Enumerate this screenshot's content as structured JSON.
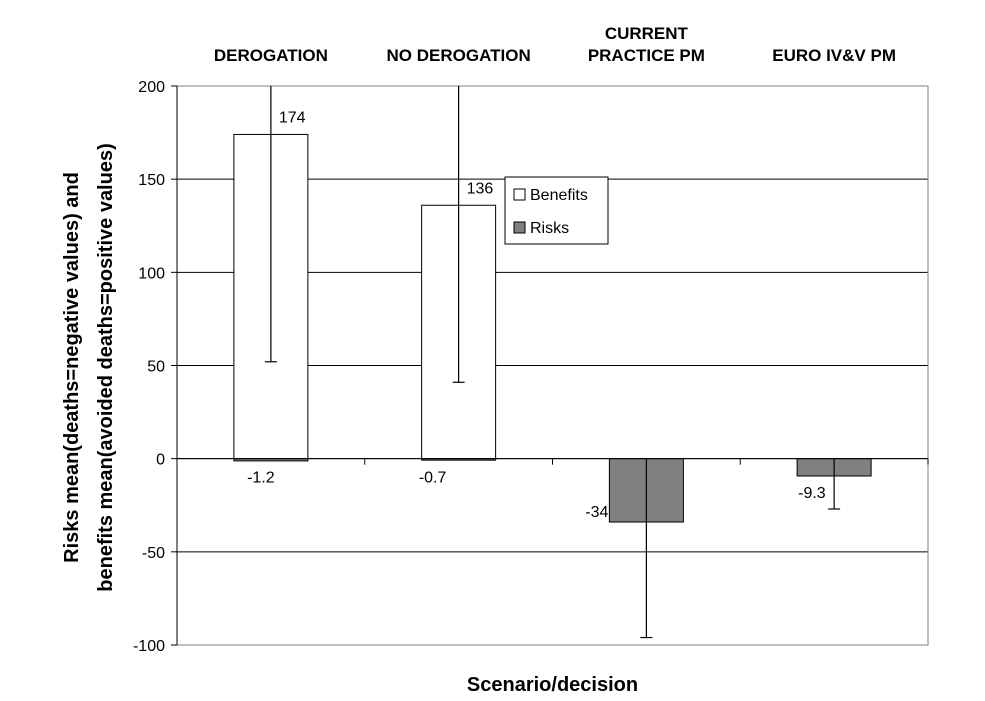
{
  "chart_data": {
    "type": "bar",
    "categories": [
      "DEROGATION",
      "NO DEROGATION",
      "CURRENT PRACTICE PM",
      "EURO IV&V PM"
    ],
    "category_labels": [
      [
        "DEROGATION"
      ],
      [
        "NO DEROGATION"
      ],
      [
        "CURRENT",
        "PRACTICE PM"
      ],
      [
        "EURO IV&V PM"
      ]
    ],
    "series": [
      {
        "name": "Benefits",
        "color": "#ffffff",
        "values": [
          174,
          136,
          null,
          null
        ],
        "value_labels": [
          "174",
          "136",
          "",
          ""
        ],
        "error_low": [
          52,
          41,
          null,
          null
        ],
        "error_high": [
          200,
          200,
          null,
          null
        ]
      },
      {
        "name": "Risks",
        "color": "#808080",
        "values": [
          -1.2,
          -0.7,
          -34,
          -9.3
        ],
        "value_labels": [
          "-1.2",
          "-0.7",
          "-34",
          "-9.3"
        ],
        "error_low": [
          null,
          null,
          -96,
          -27
        ],
        "error_high": [
          null,
          null,
          0,
          0
        ]
      }
    ],
    "xlabel": "Scenario/decision",
    "ylabel_lines": [
      "Risks mean(deaths=negative values) and",
      "benefits mean(avoided deaths=positive values)"
    ],
    "ylim": [
      -100,
      200
    ],
    "yticks": [
      -100,
      -50,
      0,
      50,
      100,
      150,
      200
    ],
    "grid": true,
    "legend_position": "center"
  }
}
